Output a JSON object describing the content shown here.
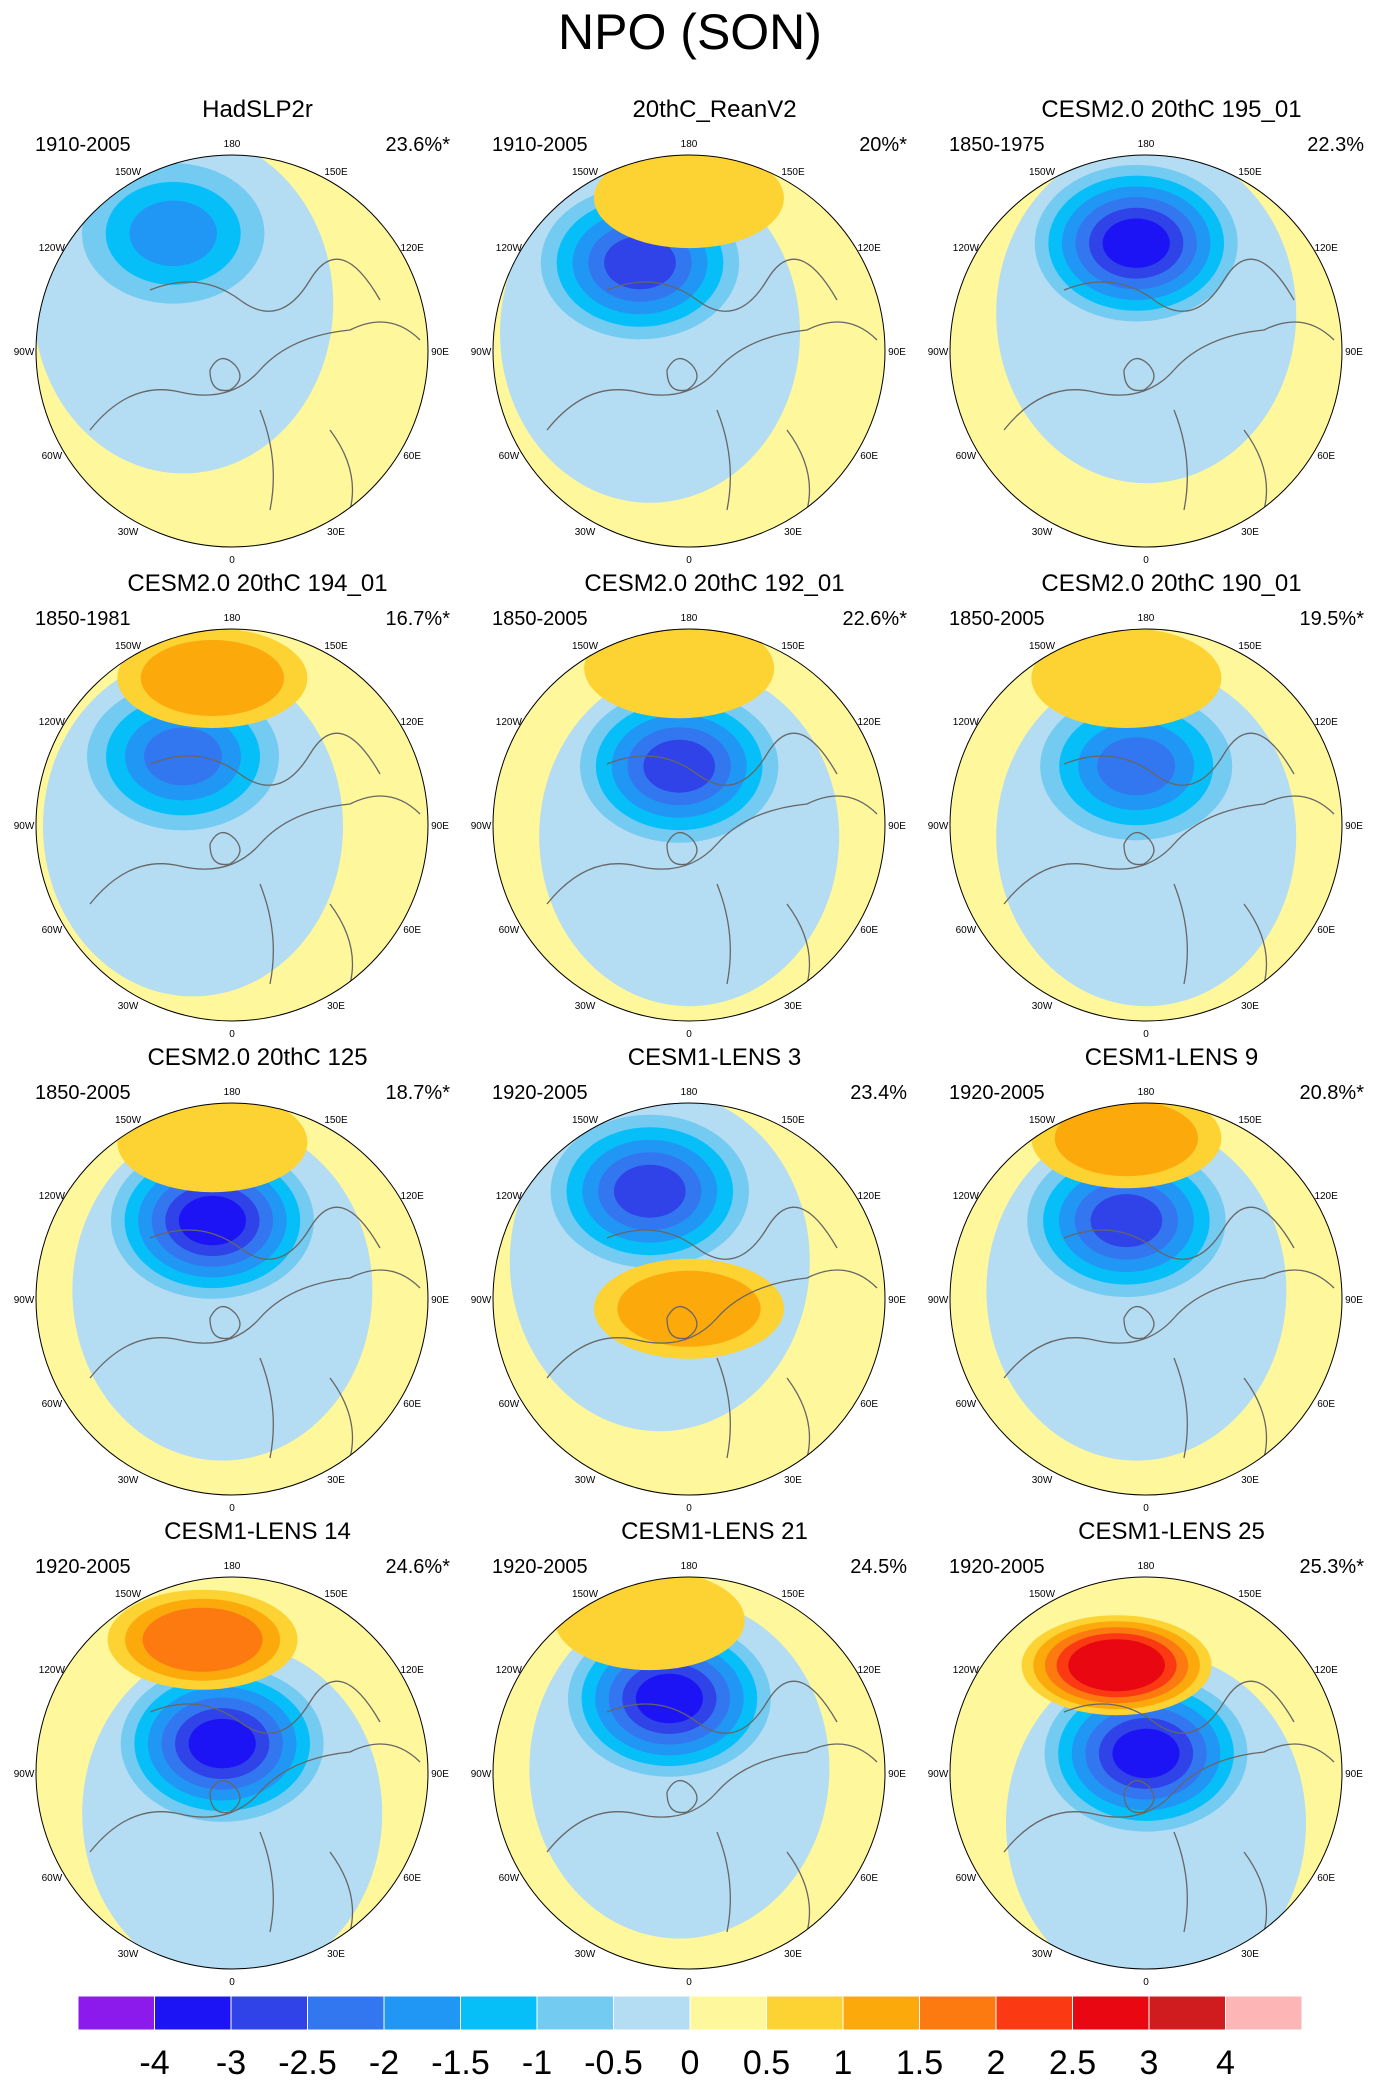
{
  "title": "NPO (SON)",
  "lon_labels": [
    "180",
    "150W",
    "150E",
    "120W",
    "120E",
    "90W",
    "90E",
    "60W",
    "60E",
    "30W",
    "30E",
    "0"
  ],
  "panels": [
    {
      "title": "HadSLP2r",
      "period": "1910-2005",
      "variance": "23.6%*",
      "neg_center": [
        -0.3,
        -0.6
      ],
      "neg_min": -1.5,
      "pos_center": null,
      "pos_max": 0
    },
    {
      "title": "20thC_ReanV2",
      "period": "1910-2005",
      "variance": "20%*",
      "neg_center": [
        -0.25,
        -0.45
      ],
      "neg_min": -2.5,
      "pos_center": [
        0.0,
        -0.78
      ],
      "pos_max": 0.9
    },
    {
      "title": "CESM2.0 20thC 195_01",
      "period": "1850-1975",
      "variance": "22.3%",
      "neg_center": [
        -0.05,
        -0.55
      ],
      "neg_min": -3.0,
      "pos_center": null,
      "pos_max": 0
    },
    {
      "title": "CESM2.0 20thC 194_01",
      "period": "1850-1981",
      "variance": "16.7%*",
      "neg_center": [
        -0.25,
        -0.35
      ],
      "neg_min": -2.0,
      "pos_center": [
        -0.1,
        -0.75
      ],
      "pos_max": 1.2
    },
    {
      "title": "CESM2.0 20thC 192_01",
      "period": "1850-2005",
      "variance": "22.6%*",
      "neg_center": [
        -0.05,
        -0.3
      ],
      "neg_min": -2.5,
      "pos_center": [
        -0.05,
        -0.8
      ],
      "pos_max": 0.8
    },
    {
      "title": "CESM2.0 20thC 190_01",
      "period": "1850-2005",
      "variance": "19.5%*",
      "neg_center": [
        -0.05,
        -0.3
      ],
      "neg_min": -2.2,
      "pos_center": [
        -0.1,
        -0.75
      ],
      "pos_max": 0.9
    },
    {
      "title": "CESM2.0 20thC 125",
      "period": "1850-2005",
      "variance": "18.7%*",
      "neg_center": [
        -0.1,
        -0.4
      ],
      "neg_min": -3.0,
      "pos_center": [
        -0.1,
        -0.8
      ],
      "pos_max": 0.9
    },
    {
      "title": "CESM1-LENS 3",
      "period": "1920-2005",
      "variance": "23.4%",
      "neg_center": [
        -0.2,
        -0.55
      ],
      "neg_min": -2.5,
      "pos_center": [
        0.0,
        0.05
      ],
      "pos_max": 1.3
    },
    {
      "title": "CESM1-LENS 9",
      "period": "1920-2005",
      "variance": "20.8%*",
      "neg_center": [
        -0.1,
        -0.4
      ],
      "neg_min": -2.5,
      "pos_center": [
        -0.1,
        -0.82
      ],
      "pos_max": 1.3
    },
    {
      "title": "CESM1-LENS 14",
      "period": "1920-2005",
      "variance": "24.6%*",
      "neg_center": [
        -0.05,
        -0.15
      ],
      "neg_min": -3.0,
      "pos_center": [
        -0.15,
        -0.68
      ],
      "pos_max": 1.8
    },
    {
      "title": "CESM1-LENS 21",
      "period": "1920-2005",
      "variance": "24.5%",
      "neg_center": [
        -0.1,
        -0.38
      ],
      "neg_min": -3.0,
      "pos_center": [
        -0.2,
        -0.78
      ],
      "pos_max": 0.9
    },
    {
      "title": "CESM1-LENS 25",
      "period": "1920-2005",
      "variance": "25.3%*",
      "neg_center": [
        0.0,
        -0.1
      ],
      "neg_min": -3.0,
      "pos_center": [
        -0.15,
        -0.55
      ],
      "pos_max": 2.6
    }
  ],
  "colorbar": {
    "labels": [
      "-4",
      "-3",
      "-2.5",
      "-2",
      "-1.5",
      "-1",
      "-0.5",
      "0",
      "0.5",
      "1",
      "1.5",
      "2",
      "2.5",
      "3",
      "4"
    ],
    "colors": [
      "#8c1aec",
      "#1d14f5",
      "#2f43e8",
      "#3377f0",
      "#2197f5",
      "#07bff8",
      "#74cbf2",
      "#b4dcf2",
      "#fef79b",
      "#fdd233",
      "#fca90b",
      "#fc7a10",
      "#fb3913",
      "#e90711",
      "#d01c1f",
      "#fdb6b5"
    ],
    "levels": [
      -4,
      -3,
      -2.5,
      -2,
      -1.5,
      -1,
      -0.5,
      0,
      0.5,
      1,
      1.5,
      2,
      2.5,
      3,
      4
    ]
  }
}
